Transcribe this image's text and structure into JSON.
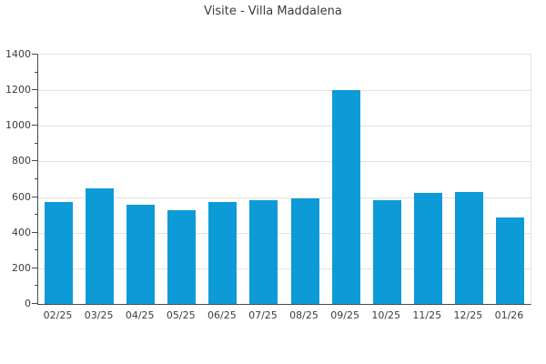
{
  "chart_data": {
    "type": "bar",
    "title": "Visite - Villa Maddalena",
    "xlabel": "",
    "ylabel": "",
    "categories": [
      "02/25",
      "03/25",
      "04/25",
      "05/25",
      "06/25",
      "07/25",
      "08/25",
      "09/25",
      "10/25",
      "11/25",
      "12/25",
      "01/26"
    ],
    "values": [
      570,
      650,
      555,
      525,
      570,
      585,
      595,
      1200,
      580,
      625,
      630,
      485
    ],
    "ylim": [
      0,
      1400
    ],
    "ytick_step": 200,
    "ytick_labels": [
      "0",
      "200",
      "400",
      "600",
      "800",
      "1000",
      "1200",
      "1400"
    ],
    "minor_tick_step": 100,
    "grid": true,
    "legend": null,
    "bar_color": "#0d9bd8"
  },
  "colors": {
    "bar": "#0d9bd8",
    "axis_spine": "#4a4a4a",
    "gridline": "#e3e3e3",
    "text": "#3c3c3c",
    "background": "#ffffff"
  }
}
